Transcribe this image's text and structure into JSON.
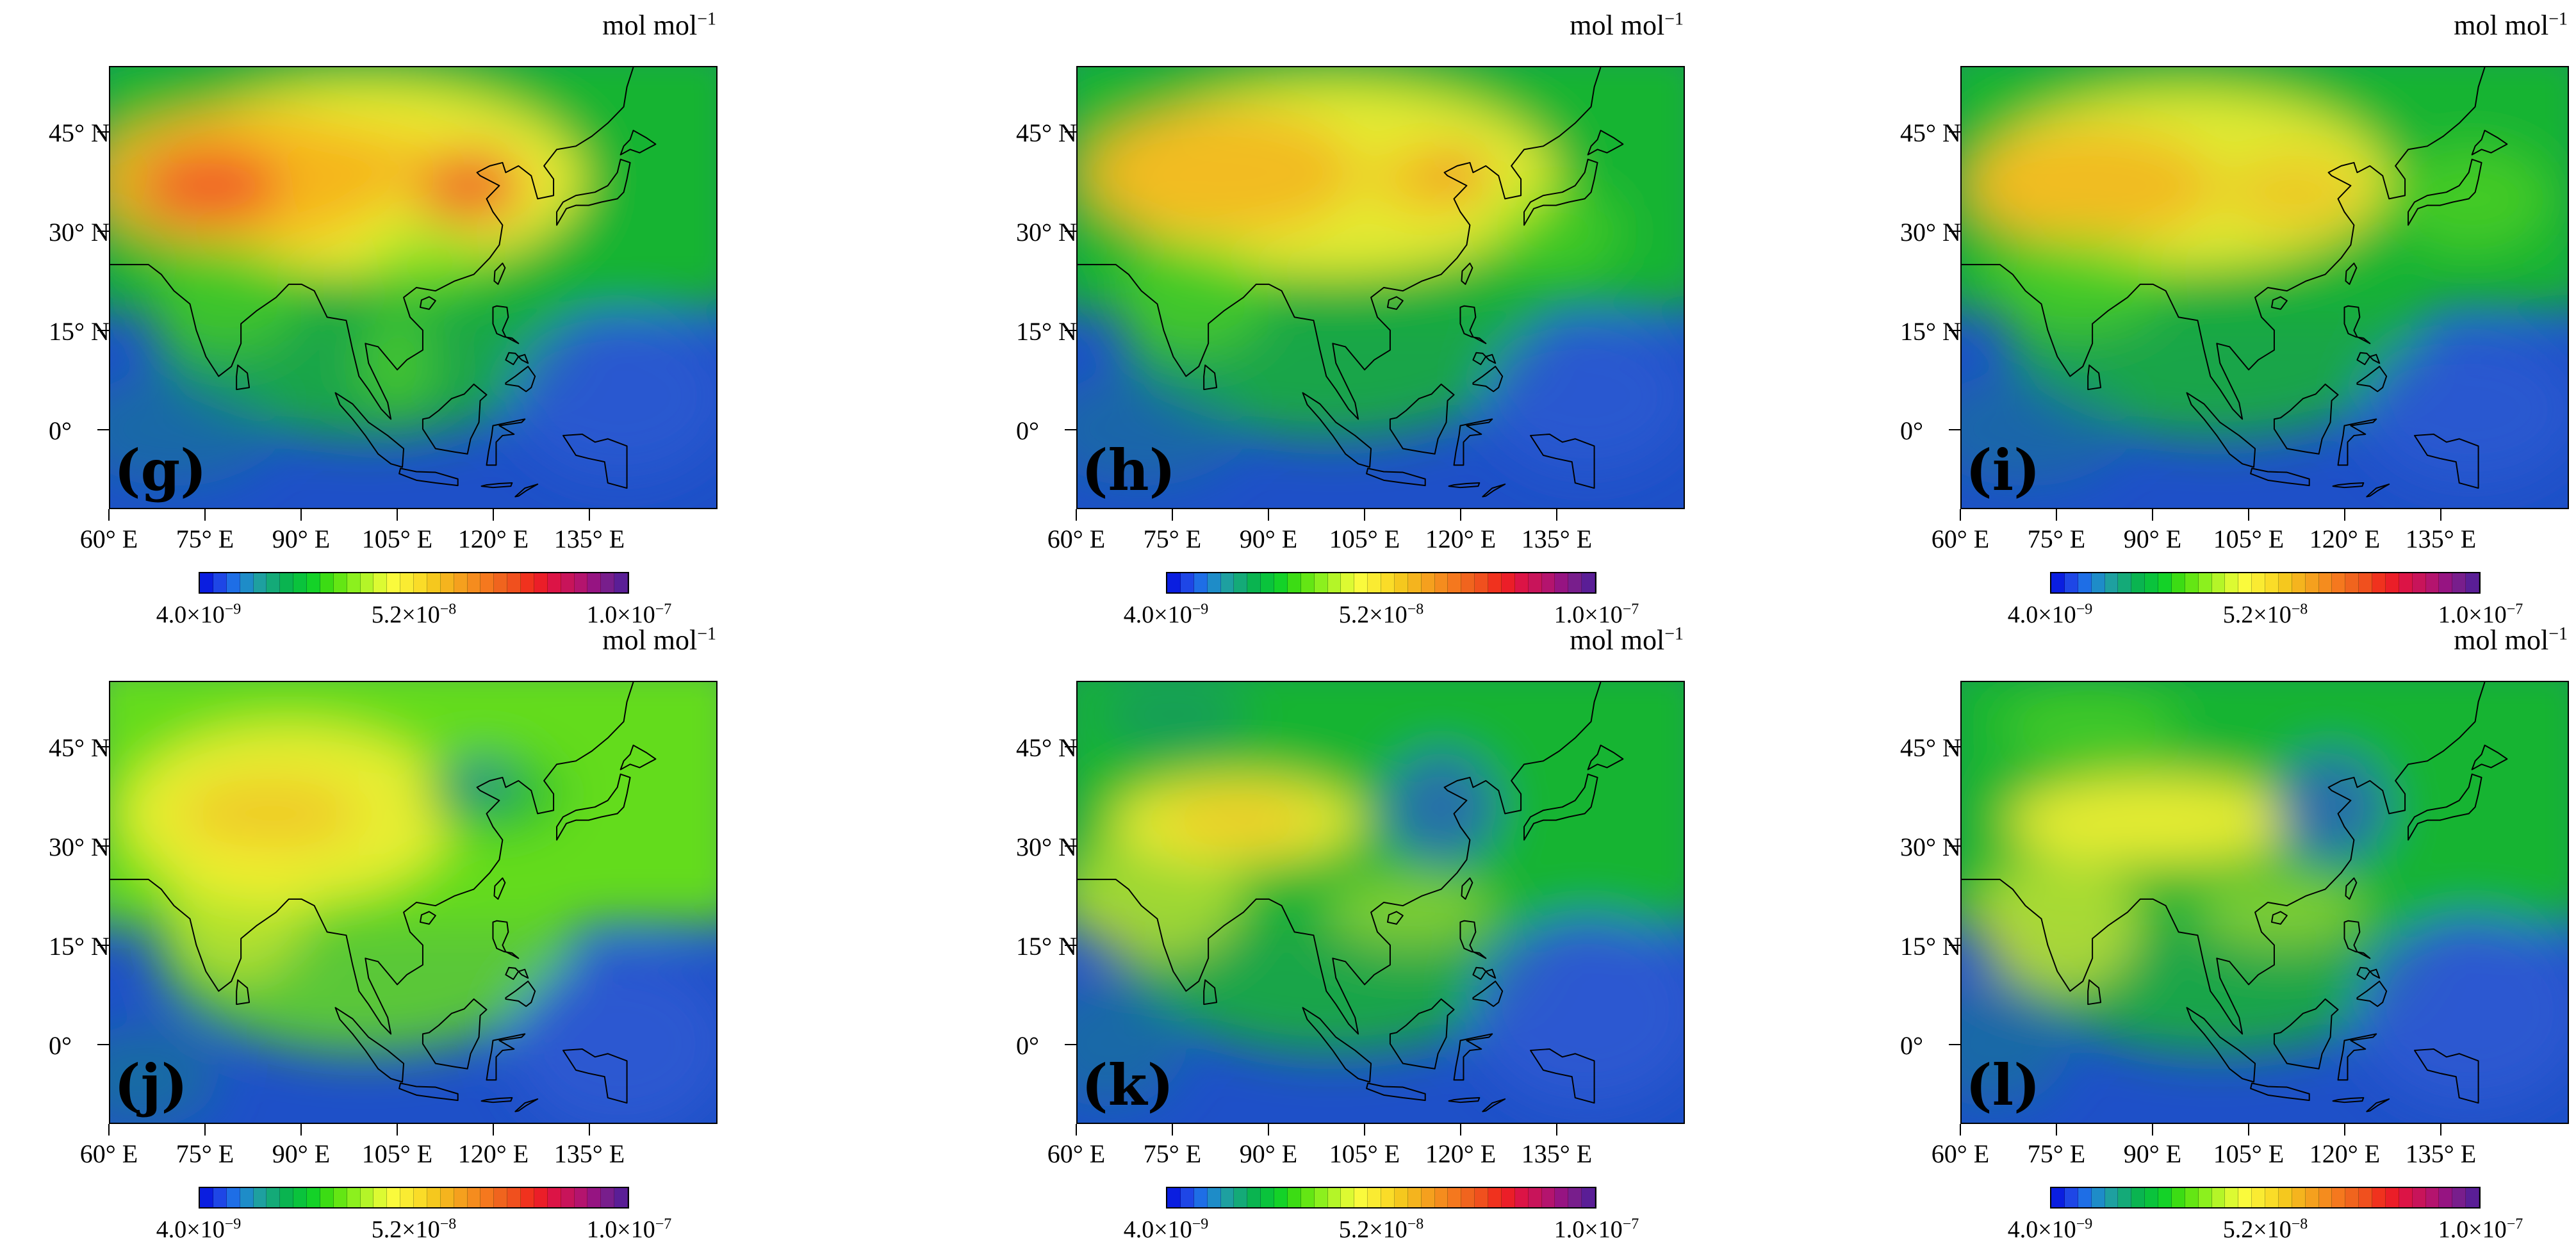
{
  "unit": {
    "base": "mol mol",
    "exp": "−1"
  },
  "lat_ticks": [
    "45° N",
    "30° N",
    "15° N",
    "0°"
  ],
  "lon_ticks": [
    "60° E",
    "75° E",
    "90° E",
    "105° E",
    "120° E",
    "135° E"
  ],
  "colorbar": {
    "labels": [
      {
        "mant": "4.0×10",
        "exp": "−9"
      },
      {
        "mant": "5.2×10",
        "exp": "−8"
      },
      {
        "mant": "1.0×10",
        "exp": "−7"
      }
    ],
    "colors": [
      "#0a1ee0",
      "#1e46e6",
      "#1e6ee6",
      "#1e8cc8",
      "#1ea0a0",
      "#14aa78",
      "#0ab450",
      "#0ac33c",
      "#14d228",
      "#3cdc14",
      "#64e614",
      "#8cf01e",
      "#b4f528",
      "#dcfa32",
      "#fafa3c",
      "#faeb32",
      "#fadc28",
      "#f5c81e",
      "#f5b41e",
      "#f5a01e",
      "#f58c1e",
      "#f5781e",
      "#f0641e",
      "#f0501e",
      "#f0321e",
      "#eb1e28",
      "#dc1446",
      "#c8145a",
      "#b4146e",
      "#961482",
      "#781e8c",
      "#5a1e96"
    ]
  },
  "panels": [
    {
      "label": "(g)",
      "style": "very-high"
    },
    {
      "label": "(h)",
      "style": "high"
    },
    {
      "label": "(i)",
      "style": "mid-high"
    },
    {
      "label": "(j)",
      "style": "mid"
    },
    {
      "label": "(k)",
      "style": "low"
    },
    {
      "label": "(l)",
      "style": "low-2"
    }
  ],
  "palette": {
    "ocean_deep": "#1e50c8",
    "ocean_mid": "#147d8c",
    "green": "#19b432",
    "lightgreen": "#64dc1e",
    "yellow": "#f5f032",
    "orange": "#f5b41e",
    "red": "#f0502a",
    "blue_land": "#2d5ad2"
  }
}
